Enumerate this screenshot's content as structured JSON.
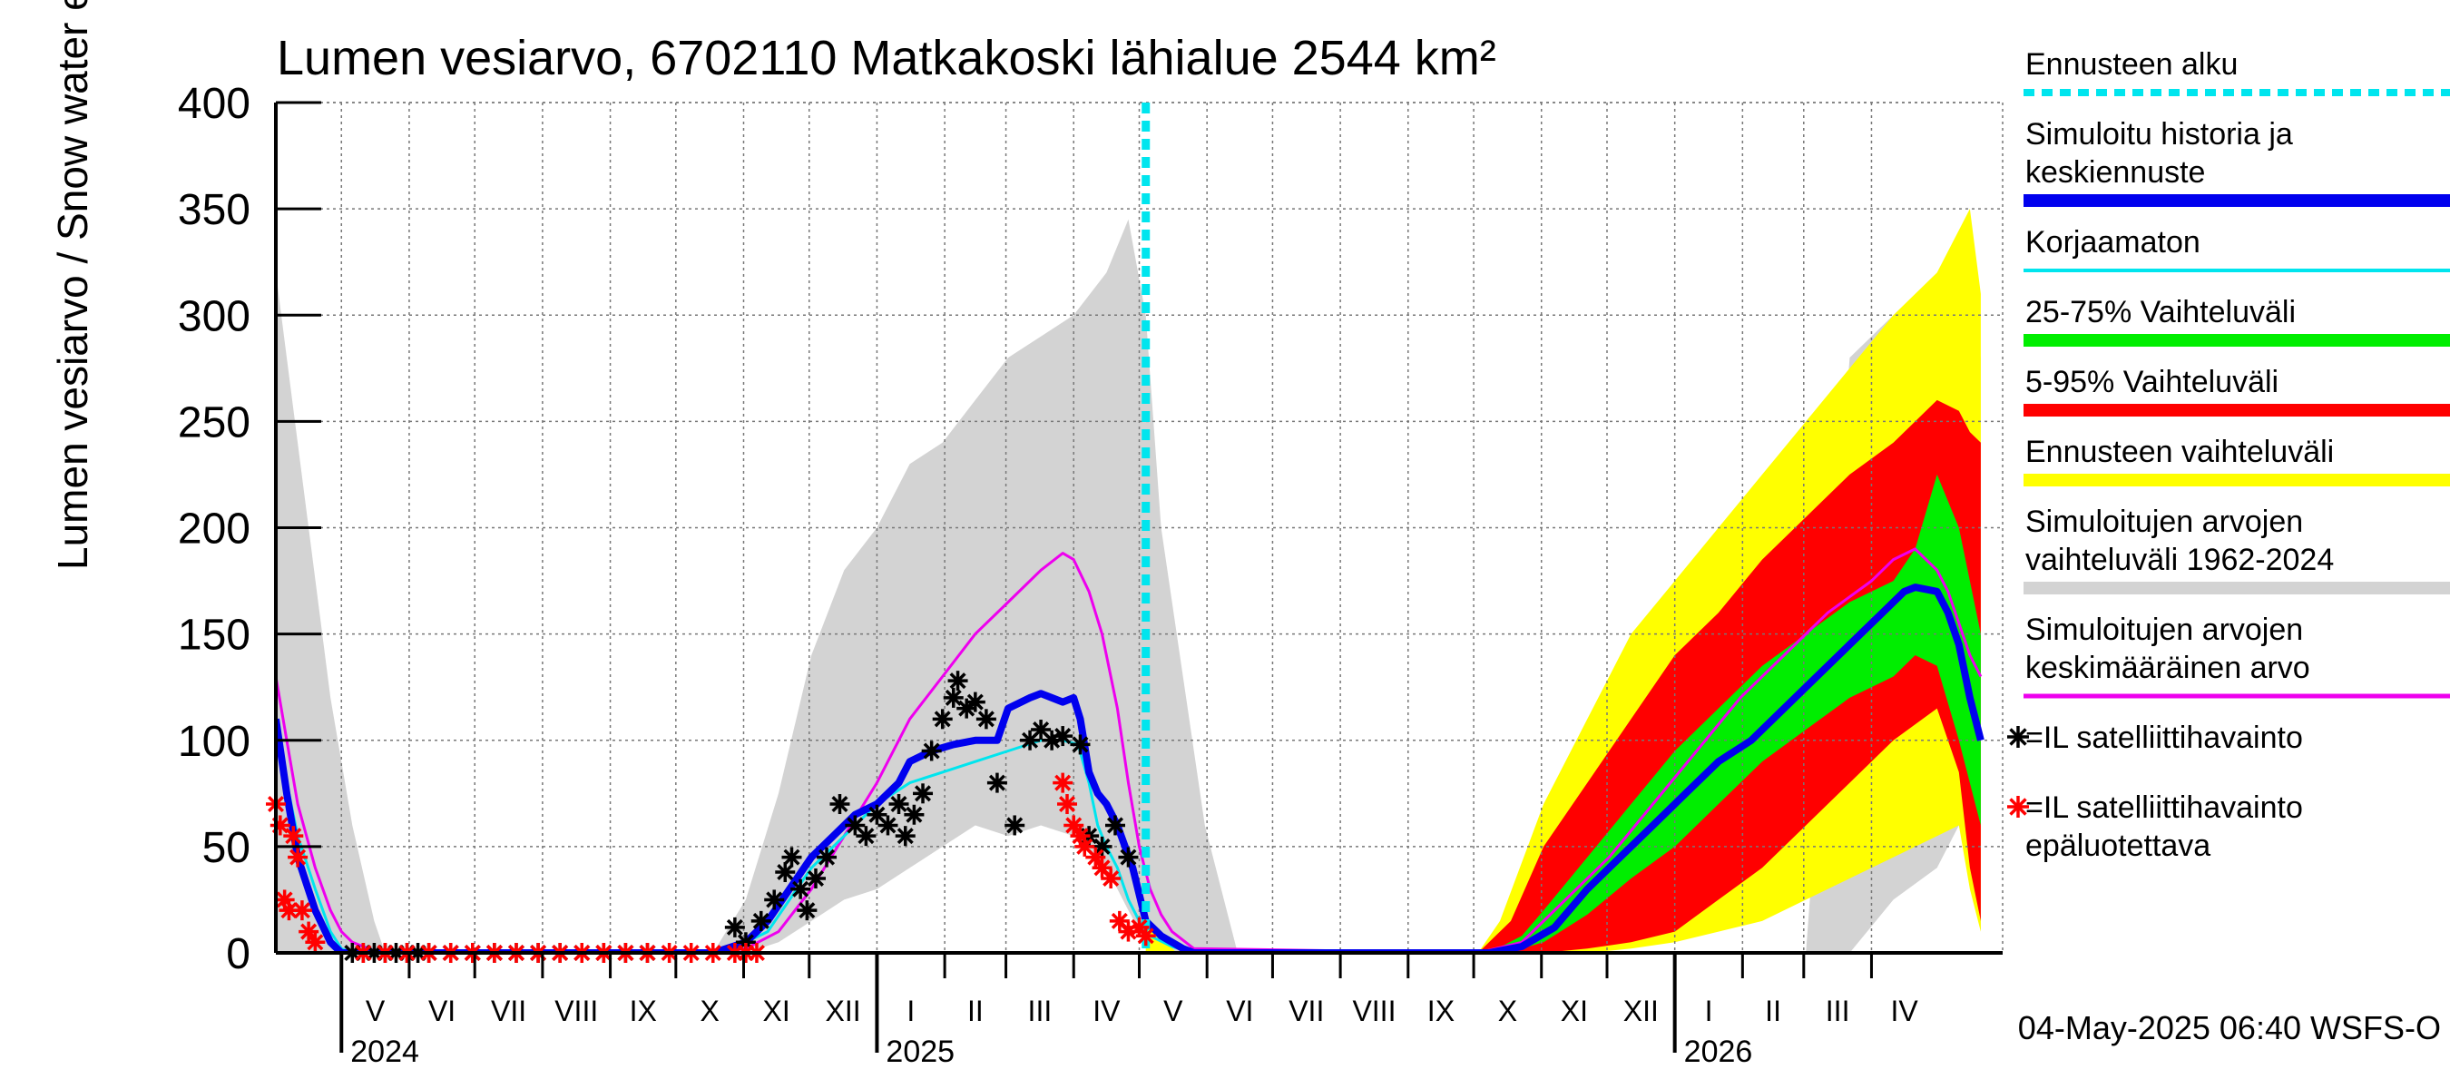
{
  "chart_data": {
    "type": "area",
    "title": "Lumen vesiarvo, 6702110 Matkakoski lähialue 2544 km²",
    "ylabel": "Lumen vesiarvo / Snow water equiv.    mm",
    "ylim": [
      0,
      400
    ],
    "yticks": [
      0,
      50,
      100,
      150,
      200,
      250,
      300,
      350,
      400
    ],
    "x_unit": "days since 2024-04-01",
    "xlim": [
      0,
      790
    ],
    "forecast_start_day": 398,
    "months": [
      {
        "label": "V",
        "start": 30,
        "end": 61
      },
      {
        "label": "VI",
        "start": 61,
        "end": 91
      },
      {
        "label": "VII",
        "start": 91,
        "end": 122
      },
      {
        "label": "VIII",
        "start": 122,
        "end": 153
      },
      {
        "label": "IX",
        "start": 153,
        "end": 183
      },
      {
        "label": "X",
        "start": 183,
        "end": 214
      },
      {
        "label": "XI",
        "start": 214,
        "end": 244
      },
      {
        "label": "XII",
        "start": 244,
        "end": 275
      },
      {
        "label": "I",
        "start": 275,
        "end": 306
      },
      {
        "label": "II",
        "start": 306,
        "end": 334
      },
      {
        "label": "III",
        "start": 334,
        "end": 365
      },
      {
        "label": "IV",
        "start": 365,
        "end": 395
      },
      {
        "label": "V",
        "start": 395,
        "end": 426
      },
      {
        "label": "VI",
        "start": 426,
        "end": 456
      },
      {
        "label": "VII",
        "start": 456,
        "end": 487
      },
      {
        "label": "VIII",
        "start": 487,
        "end": 518
      },
      {
        "label": "IX",
        "start": 518,
        "end": 548
      },
      {
        "label": "X",
        "start": 548,
        "end": 579
      },
      {
        "label": "XI",
        "start": 579,
        "end": 609
      },
      {
        "label": "XII",
        "start": 609,
        "end": 640
      },
      {
        "label": "I",
        "start": 640,
        "end": 671
      },
      {
        "label": "II",
        "start": 671,
        "end": 699
      },
      {
        "label": "III",
        "start": 699,
        "end": 730
      },
      {
        "label": "IV",
        "start": 730,
        "end": 760
      }
    ],
    "years": [
      {
        "label": "2024",
        "day": 30
      },
      {
        "label": "2025",
        "day": 275
      },
      {
        "label": "2026",
        "day": 640
      }
    ],
    "series": [
      {
        "name": "Simuloitujen arvojen vaihteluväli 1962-2024",
        "kind": "band",
        "color": "#d3d3d3",
        "x": [
          0,
          5,
          15,
          25,
          35,
          45,
          50,
          200,
          215,
          230,
          245,
          260,
          275,
          290,
          305,
          320,
          335,
          350,
          365,
          380,
          390,
          398,
          405,
          415,
          425,
          440,
          700,
          720,
          740,
          760,
          770,
          775,
          780
        ],
        "upper": [
          320,
          280,
          200,
          120,
          60,
          15,
          0,
          0,
          25,
          75,
          140,
          180,
          200,
          230,
          240,
          260,
          280,
          290,
          300,
          320,
          345,
          300,
          200,
          130,
          60,
          0,
          0,
          280,
          300,
          310,
          310,
          300,
          280
        ],
        "lower": [
          0,
          0,
          0,
          0,
          0,
          0,
          0,
          0,
          0,
          5,
          15,
          25,
          30,
          40,
          50,
          60,
          55,
          60,
          55,
          40,
          20,
          5,
          0,
          0,
          0,
          0,
          0,
          0,
          25,
          40,
          60,
          40,
          10
        ]
      },
      {
        "name": "Ennusteen vaihteluväli",
        "kind": "band",
        "color": "#ffff00",
        "x": [
          398,
          405,
          412,
          430,
          550,
          560,
          580,
          600,
          620,
          640,
          660,
          680,
          700,
          720,
          740,
          760,
          770,
          775,
          780
        ],
        "upper": [
          12,
          8,
          0,
          0,
          0,
          15,
          70,
          110,
          150,
          175,
          200,
          225,
          250,
          275,
          300,
          320,
          340,
          350,
          310
        ],
        "lower": [
          0,
          0,
          0,
          0,
          0,
          0,
          0,
          0,
          2,
          5,
          10,
          15,
          25,
          35,
          45,
          55,
          60,
          30,
          10
        ]
      },
      {
        "name": "5-95% Vaihteluväli",
        "kind": "band",
        "color": "#ff0000",
        "x": [
          550,
          565,
          580,
          600,
          620,
          640,
          660,
          680,
          700,
          720,
          740,
          760,
          770,
          775,
          780
        ],
        "upper": [
          0,
          15,
          50,
          80,
          110,
          140,
          160,
          185,
          205,
          225,
          240,
          260,
          255,
          245,
          240
        ],
        "lower": [
          0,
          0,
          0,
          2,
          5,
          10,
          25,
          40,
          60,
          80,
          100,
          115,
          85,
          40,
          15
        ]
      },
      {
        "name": "25-75% Vaihteluväli",
        "kind": "band",
        "color": "#00ee00",
        "x": [
          555,
          570,
          580,
          600,
          620,
          640,
          660,
          680,
          700,
          720,
          740,
          750,
          760,
          770,
          780
        ],
        "upper": [
          0,
          8,
          20,
          45,
          70,
          95,
          115,
          135,
          150,
          165,
          175,
          190,
          225,
          200,
          150
        ],
        "lower": [
          0,
          2,
          5,
          18,
          35,
          50,
          70,
          90,
          105,
          120,
          130,
          140,
          135,
          100,
          60
        ]
      },
      {
        "name": "Simuloitujen arvojen keskimääräinen arvo",
        "kind": "line",
        "color": "#ee00ee",
        "width": 3,
        "x": [
          0,
          5,
          10,
          18,
          25,
          30,
          35,
          40,
          45,
          50,
          200,
          215,
          230,
          245,
          260,
          275,
          290,
          305,
          320,
          335,
          350,
          360,
          365,
          372,
          378,
          385,
          390,
          395,
          400,
          405,
          410,
          420,
          550,
          570,
          590,
          610,
          630,
          650,
          670,
          690,
          710,
          730,
          740,
          750,
          760,
          765,
          770,
          775,
          780
        ],
        "y": [
          130,
          100,
          70,
          40,
          20,
          10,
          5,
          3,
          1,
          0,
          0,
          2,
          10,
          30,
          55,
          80,
          110,
          130,
          150,
          165,
          180,
          188,
          185,
          170,
          150,
          115,
          80,
          50,
          30,
          18,
          10,
          2,
          0,
          5,
          25,
          45,
          70,
          95,
          120,
          140,
          160,
          175,
          185,
          190,
          180,
          170,
          155,
          140,
          130
        ]
      },
      {
        "name": "Korjaamaton",
        "kind": "line",
        "color": "#00e5ee",
        "width": 3,
        "x": [
          0,
          5,
          10,
          18,
          25,
          30,
          35,
          200,
          215,
          225,
          235,
          245,
          260,
          275,
          290,
          305,
          320,
          335,
          350,
          360,
          367,
          372,
          376,
          380,
          385,
          390,
          395,
          400,
          410,
          420
        ],
        "y": [
          110,
          80,
          55,
          30,
          10,
          2,
          0,
          0,
          5,
          10,
          25,
          40,
          55,
          70,
          80,
          85,
          90,
          95,
          100,
          100,
          98,
          80,
          60,
          50,
          40,
          25,
          15,
          8,
          3,
          0
        ]
      },
      {
        "name": "Simuloitu historia ja keskiennuste",
        "kind": "line",
        "color": "#0000ee",
        "width": 8,
        "x": [
          0,
          5,
          10,
          18,
          25,
          30,
          200,
          215,
          225,
          235,
          245,
          255,
          265,
          275,
          285,
          290,
          300,
          310,
          320,
          330,
          335,
          345,
          350,
          355,
          360,
          365,
          368,
          372,
          376,
          380,
          385,
          392,
          398,
          405,
          415,
          420,
          555,
          570,
          585,
          600,
          615,
          630,
          645,
          660,
          675,
          690,
          705,
          720,
          735,
          745,
          750,
          760,
          765,
          770,
          775,
          780
        ],
        "y": [
          110,
          75,
          45,
          20,
          5,
          0,
          0,
          5,
          15,
          30,
          45,
          55,
          65,
          70,
          80,
          90,
          95,
          98,
          100,
          100,
          115,
          120,
          122,
          120,
          118,
          120,
          110,
          85,
          75,
          70,
          60,
          40,
          15,
          8,
          2,
          0,
          0,
          3,
          12,
          30,
          45,
          60,
          75,
          90,
          100,
          115,
          130,
          145,
          160,
          170,
          172,
          170,
          160,
          145,
          120,
          100
        ]
      }
    ],
    "observations": {
      "reliable": {
        "name": "=IL satelliittihavainto",
        "color": "#000000",
        "x": [
          35,
          40,
          45,
          50,
          55,
          60,
          65,
          70,
          80,
          90,
          100,
          110,
          120,
          130,
          140,
          150,
          160,
          170,
          210,
          215,
          222,
          228,
          233,
          236,
          240,
          243,
          247,
          252,
          258,
          265,
          270,
          275,
          280,
          285,
          288,
          292,
          296,
          300,
          305,
          310,
          312,
          316,
          320,
          325,
          330,
          338,
          345,
          350,
          355,
          360,
          368,
          372,
          378,
          384,
          390
        ],
        "y": [
          0,
          0,
          0,
          0,
          0,
          0,
          0,
          0,
          0,
          0,
          0,
          0,
          0,
          0,
          0,
          0,
          0,
          0,
          12,
          5,
          15,
          25,
          38,
          45,
          30,
          20,
          35,
          45,
          70,
          60,
          55,
          65,
          60,
          70,
          55,
          65,
          75,
          95,
          110,
          120,
          128,
          115,
          118,
          110,
          80,
          60,
          100,
          105,
          100,
          102,
          98,
          55,
          50,
          60,
          45
        ]
      },
      "unreliable": {
        "name": "=IL satelliittihavainto epäluotettava",
        "color": "#ff0000",
        "x": [
          0,
          2,
          4,
          6,
          8,
          10,
          12,
          15,
          18,
          40,
          50,
          60,
          70,
          80,
          90,
          100,
          110,
          120,
          130,
          140,
          150,
          160,
          170,
          180,
          190,
          200,
          210,
          215,
          220,
          360,
          362,
          365,
          368,
          370,
          375,
          378,
          382,
          386,
          390,
          395,
          398
        ],
        "y": [
          70,
          60,
          25,
          20,
          55,
          45,
          20,
          10,
          5,
          0,
          0,
          0,
          0,
          0,
          0,
          0,
          0,
          0,
          0,
          0,
          0,
          0,
          0,
          0,
          0,
          0,
          0,
          0,
          0,
          80,
          70,
          60,
          55,
          50,
          45,
          40,
          35,
          15,
          10,
          12,
          8
        ]
      }
    },
    "legend": {
      "placement": "right",
      "items": [
        {
          "label": "Ennusteen alku",
          "style": "dashed",
          "color": "#00e5ee"
        },
        {
          "label": "Simuloitu historia ja\nkeskiennuste",
          "style": "thick",
          "color": "#0000ee"
        },
        {
          "label": "Korjaamaton",
          "style": "thin",
          "color": "#00e5ee"
        },
        {
          "label": "25-75% Vaihteluväli",
          "style": "thick",
          "color": "#00ee00"
        },
        {
          "label": "5-95% Vaihteluväli",
          "style": "thick",
          "color": "#ff0000"
        },
        {
          "label": "Ennusteen vaihteluväli",
          "style": "thick",
          "color": "#ffff00"
        },
        {
          "label": "Simuloitujen arvojen\nvaihteluväli 1962-2024",
          "style": "thick",
          "color": "#d3d3d3"
        },
        {
          "label": "Simuloitujen arvojen\nkeskimääräinen arvo",
          "style": "medium",
          "color": "#ee00ee"
        },
        {
          "label": "=IL satelliittihavainto",
          "style": "star",
          "color": "#000000"
        },
        {
          "label": "=IL satelliittihavainto\nepäluotettava",
          "style": "star",
          "color": "#ff0000"
        }
      ]
    },
    "footer": "04-May-2025 06:40 WSFS-O"
  }
}
